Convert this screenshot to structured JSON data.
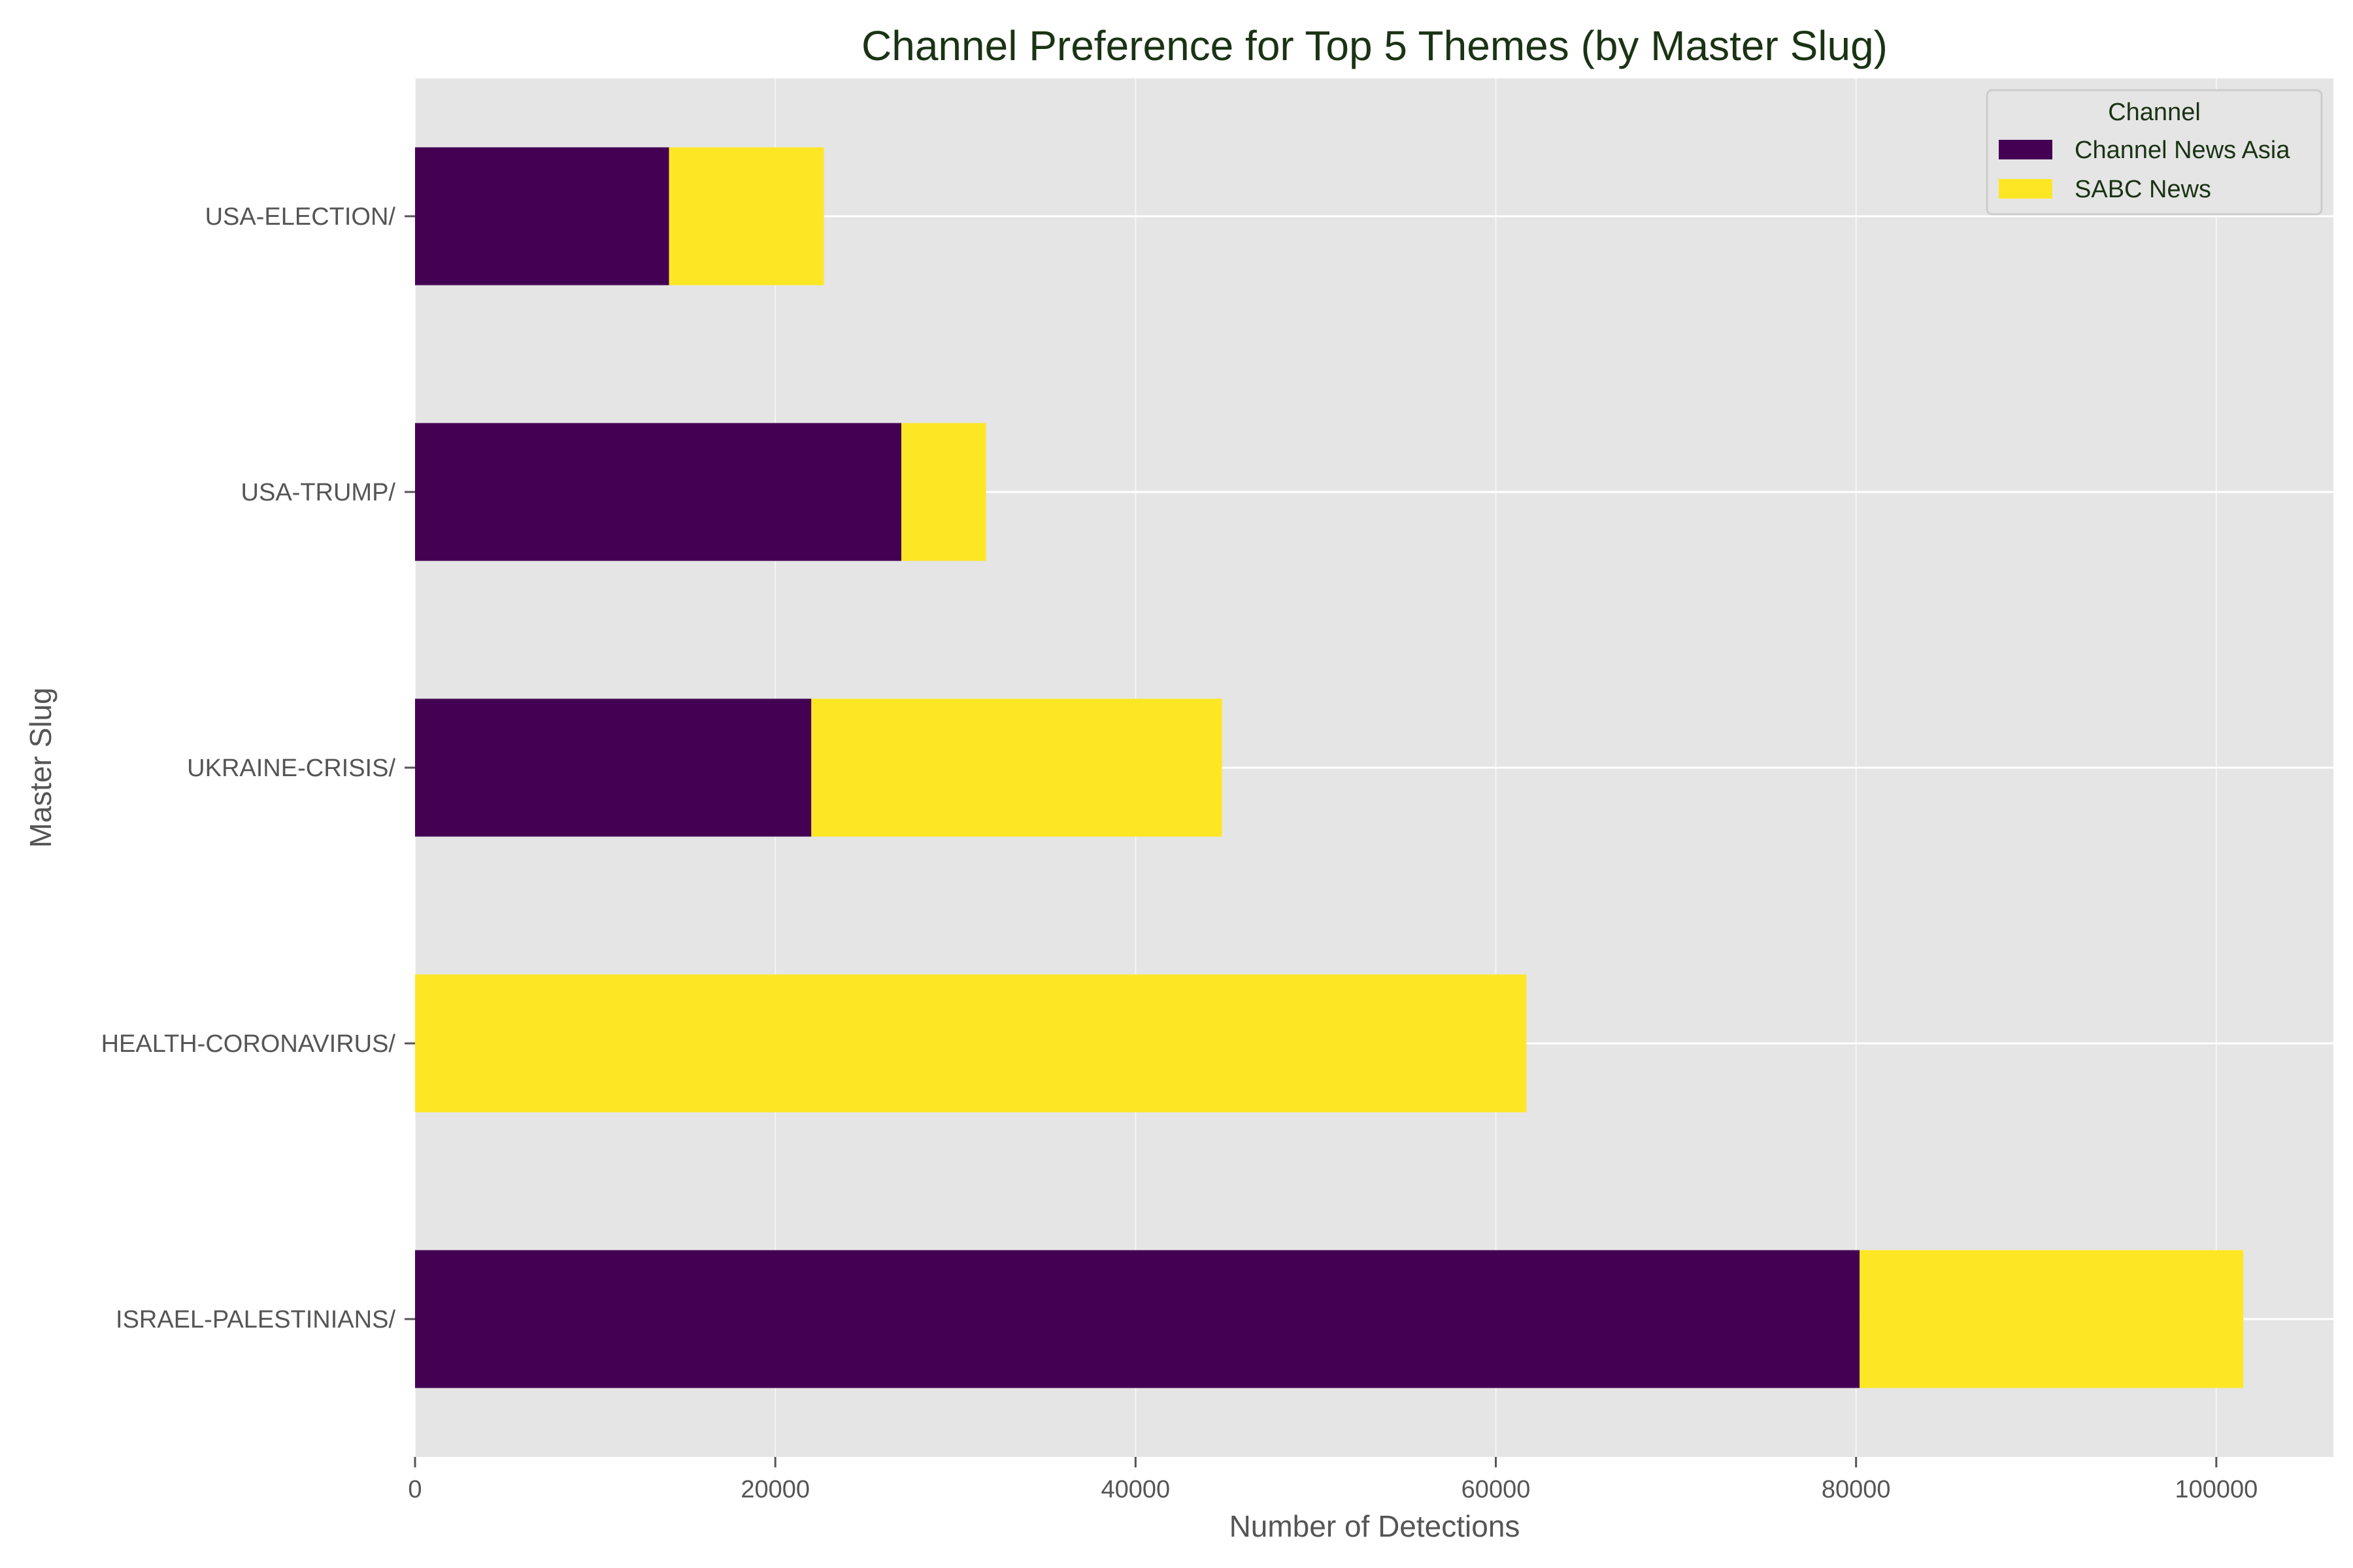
{
  "chart_data": {
    "type": "bar",
    "orientation": "horizontal",
    "stacked": true,
    "title": "Channel Preference for Top 5 Themes (by Master Slug)",
    "xlabel": "Number of Detections",
    "ylabel": "Master Slug",
    "categories": [
      "ISRAEL-PALESTINIANS/",
      "HEALTH-CORONAVIRUS/",
      "UKRAINE-CRISIS/",
      "USA-TRUMP/",
      "USA-ELECTION/"
    ],
    "series": [
      {
        "name": "Channel News Asia",
        "color": "#440154",
        "values": [
          80200,
          0,
          22000,
          27000,
          14100
        ]
      },
      {
        "name": "SABC News",
        "color": "#fde725",
        "values": [
          21300,
          61700,
          22800,
          4700,
          8600
        ]
      }
    ],
    "xlim": [
      0,
      106500
    ],
    "xticks": [
      0,
      20000,
      40000,
      60000,
      80000,
      100000
    ],
    "legend": {
      "title": "Channel",
      "placement": "top-right"
    },
    "grid": true,
    "colors": {
      "plot_background": "#e5e5e5",
      "grid": "#ffffff"
    }
  }
}
